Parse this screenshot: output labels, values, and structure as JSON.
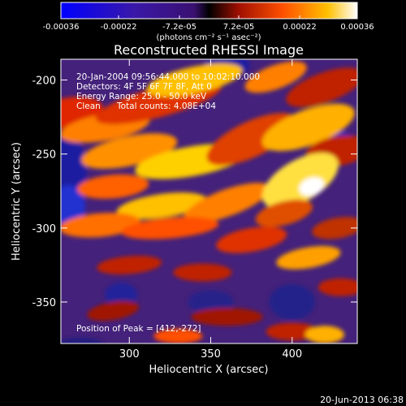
{
  "colorbar": {
    "ticks": [
      "-0.00036",
      "-0.00022",
      "-7.2e-05",
      "7.2e-05",
      "0.00022",
      "0.00036"
    ],
    "tick_values": [
      -0.00036,
      -0.00022,
      -7.2e-05,
      7.2e-05,
      0.00022,
      0.00036
    ],
    "range": [
      -0.00036,
      0.00036
    ],
    "unit_label": "(photons cm⁻² s⁻¹ asec⁻²)"
  },
  "chart_data": {
    "type": "heatmap",
    "title": "Reconstructed RHESSI Image",
    "xlabel": "Heliocentric X (arcsec)",
    "ylabel": "Heliocentric Y (arcsec)",
    "xlim": [
      258,
      440
    ],
    "ylim": [
      -378,
      -186
    ],
    "x_ticks": [
      300,
      350,
      400
    ],
    "y_ticks": [
      -200,
      -250,
      -300,
      -350
    ],
    "x_tick_labels": [
      "300",
      "350",
      "400"
    ],
    "y_tick_labels": [
      "-200",
      "-250",
      "-300",
      "-350"
    ],
    "peak": [
      412,
      -272
    ],
    "annotations": {
      "time_range": "20-Jan-2004 09:56:44.000 to 10:02:10.000",
      "detectors": "Detectors: 4F 5F 6F 7F 8F, Att 0",
      "energy": "Energy Range: 25.0 - 50.0 keV",
      "algorithm": "Clean",
      "counts": "Total counts: 4.08E+04",
      "peak_text": "Position of Peak = [412,-272]"
    }
  },
  "footer": {
    "timestamp": "20-Jun-2013 06:38"
  }
}
